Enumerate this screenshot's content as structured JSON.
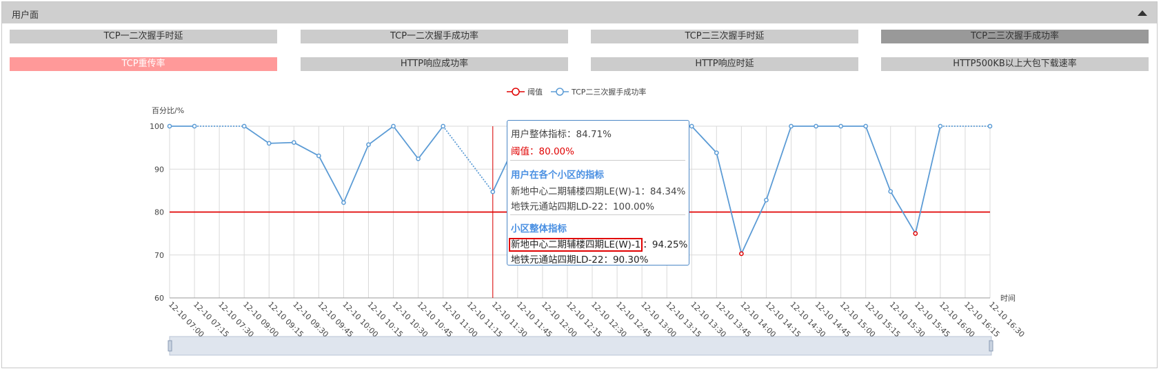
{
  "panel": {
    "title": "用户面"
  },
  "tabs": [
    {
      "label": "TCP一二次握手时延",
      "bg": "#cccccc",
      "fg": "#333333"
    },
    {
      "label": "TCP一二次握手成功率",
      "bg": "#cccccc",
      "fg": "#333333"
    },
    {
      "label": "TCP二三次握手时延",
      "bg": "#cccccc",
      "fg": "#333333"
    },
    {
      "label": "TCP二三次握手成功率",
      "bg": "#999999",
      "fg": "#333333"
    },
    {
      "label": "TCP重传率",
      "bg": "#ff9999",
      "fg": "#ffffff"
    },
    {
      "label": "HTTP响应成功率",
      "bg": "#cccccc",
      "fg": "#333333"
    },
    {
      "label": "HTTP响应时延",
      "bg": "#cccccc",
      "fg": "#333333"
    },
    {
      "label": "HTTP500KB以上大包下载速率",
      "bg": "#cccccc",
      "fg": "#333333"
    }
  ],
  "chart_data": {
    "type": "line",
    "y_label": "百分比/%",
    "x_label": "时间",
    "categories": [
      "12-10 07:00",
      "12-10 07:15",
      "12-10 07:30",
      "12-10 09:00",
      "12-10 09:15",
      "12-10 09:30",
      "12-10 09:45",
      "12-10 10:00",
      "12-10 10:15",
      "12-10 10:30",
      "12-10 10:45",
      "12-10 11:00",
      "12-10 11:15",
      "12-10 11:30",
      "12-10 11:45",
      "12-10 12:00",
      "12-10 12:15",
      "12-10 12:30",
      "12-10 12:45",
      "12-10 13:00",
      "12-10 13:15",
      "12-10 13:30",
      "12-10 13:45",
      "12-10 14:00",
      "12-10 14:15",
      "12-10 14:30",
      "12-10 14:45",
      "12-10 15:00",
      "12-10 15:15",
      "12-10 15:30",
      "12-10 15:45",
      "12-10 16:00",
      "12-10 16:15",
      "12-10 16:30"
    ],
    "series": [
      {
        "name": "阈值",
        "color": "#e00000",
        "markers": false,
        "values": [
          80,
          80,
          80,
          80,
          80,
          80,
          80,
          80,
          80,
          80,
          80,
          80,
          80,
          80,
          80,
          80,
          80,
          80,
          80,
          80,
          80,
          80,
          80,
          80,
          80,
          80,
          80,
          80,
          80,
          80,
          80,
          80,
          80,
          80
        ]
      },
      {
        "name": "TCP二三次握手成功率",
        "color": "#5b9bd5",
        "markers": true,
        "below_threshold_color": "#e00000",
        "values": [
          100,
          100,
          null,
          100,
          96,
          96.2,
          93.1,
          82.2,
          95.7,
          100,
          92.4,
          100,
          null,
          84.71,
          97,
          100,
          100,
          97,
          100,
          100,
          100,
          100,
          93.8,
          70.3,
          82.8,
          100,
          100,
          100,
          100,
          84.8,
          75,
          100,
          null,
          100
        ]
      }
    ],
    "ylim": [
      60,
      100
    ],
    "yticks": [
      60,
      70,
      80,
      90,
      100
    ],
    "grid": true
  },
  "tooltip": {
    "overall": "用户整体指标：84.71%",
    "threshold": "阈值：80.00%",
    "cell_title": "用户在各个小区的指标",
    "cells": [
      "新地中心二期辅楼四期LE(W)-1：84.34%",
      "地铁元通站四期LD-22：100.00%"
    ],
    "area_title": "小区整体指标",
    "area_first_name": "新地中心二期辅楼四期LE(W)-1",
    "area_first_value": "：94.25%",
    "area_second": "地铁元通站四期LD-22：90.30%"
  }
}
